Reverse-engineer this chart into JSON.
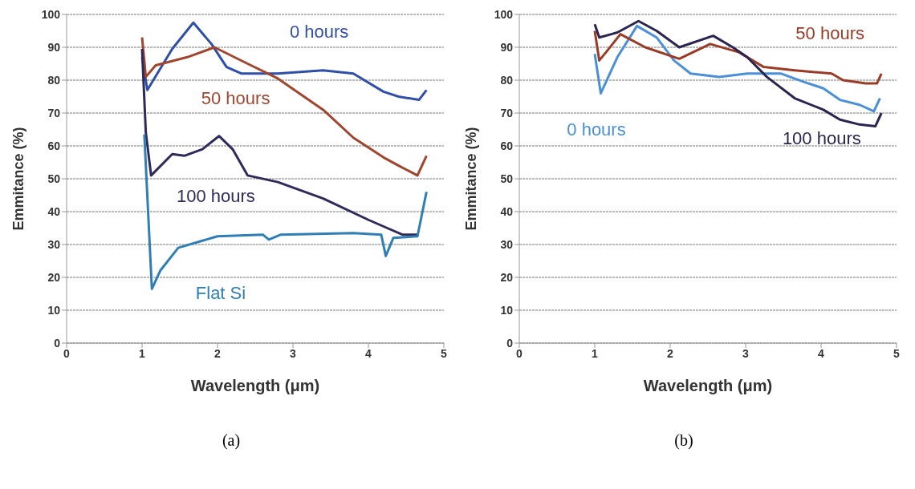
{
  "chart_data": [
    {
      "type": "line",
      "xlabel": "Wavelength (μm)",
      "ylabel": "Emmitance (%)",
      "xlim": [
        0,
        5
      ],
      "xticks": [
        0,
        1,
        2,
        3,
        4,
        5
      ],
      "ylim": [
        0,
        100
      ],
      "yticks": [
        0,
        10,
        20,
        30,
        40,
        50,
        60,
        70,
        80,
        90,
        100
      ],
      "grid": "y",
      "marker": "none",
      "line_style": "solid",
      "annotations": [
        "(a)"
      ],
      "series": [
        {
          "name": "0 hours",
          "color": "#2f4fa8",
          "x": [
            1.0,
            1.07,
            1.4,
            1.68,
            1.92,
            2.12,
            2.32,
            2.8,
            3.4,
            3.8,
            4.2,
            4.4,
            4.67,
            4.77
          ],
          "values": [
            87,
            77,
            89.5,
            97.5,
            91,
            84,
            82,
            82,
            83,
            82,
            76.5,
            75,
            74,
            77
          ]
        },
        {
          "name": "50 hours",
          "color": "#a0452e",
          "x": [
            1.0,
            1.05,
            1.18,
            1.6,
            1.96,
            2.4,
            2.8,
            3.4,
            3.8,
            4.2,
            4.4,
            4.65,
            4.77
          ],
          "values": [
            93,
            81,
            84.5,
            87,
            90,
            85,
            80.5,
            71,
            62.5,
            56.5,
            54,
            51,
            57
          ]
        },
        {
          "name": "100 hours",
          "color": "#2e2a5c",
          "x": [
            1.0,
            1.05,
            1.12,
            1.4,
            1.56,
            1.8,
            2.02,
            2.2,
            2.4,
            2.8,
            3.4,
            4.0,
            4.25,
            4.45,
            4.67
          ],
          "values": [
            89.5,
            64,
            51,
            57.5,
            57,
            59,
            63,
            59,
            51,
            49,
            44,
            37.5,
            35,
            33,
            33
          ]
        },
        {
          "name": "Flat Si",
          "color": "#2f7fb6",
          "x": [
            1.03,
            1.13,
            1.24,
            1.48,
            2.0,
            2.6,
            2.68,
            2.84,
            3.8,
            4.17,
            4.23,
            4.33,
            4.65,
            4.77
          ],
          "values": [
            63.5,
            16.5,
            22,
            29,
            32.5,
            33,
            31.5,
            33,
            33.5,
            33,
            26.5,
            32,
            32.5,
            46
          ]
        }
      ]
    },
    {
      "type": "line",
      "xlabel": "Wavelength (μm)",
      "ylabel": "Emmitance (%)",
      "xlim": [
        0,
        5
      ],
      "xticks": [
        0,
        1,
        2,
        3,
        4,
        5
      ],
      "ylim": [
        0,
        100
      ],
      "yticks": [
        0,
        10,
        20,
        30,
        40,
        50,
        60,
        70,
        80,
        90,
        100
      ],
      "grid": "y",
      "marker": "none",
      "line_style": "solid",
      "annotations": [
        "(b)"
      ],
      "series": [
        {
          "name": "0 hours",
          "color": "#4a8fd8",
          "x": [
            1.0,
            1.08,
            1.3,
            1.56,
            1.82,
            2.05,
            2.27,
            2.65,
            3.02,
            3.47,
            3.77,
            4.03,
            4.25,
            4.51,
            4.7,
            4.78
          ],
          "values": [
            88,
            76,
            87,
            96.5,
            93,
            86,
            82,
            81,
            82,
            82,
            79.5,
            77.5,
            74,
            72.5,
            70.5,
            74.5
          ]
        },
        {
          "name": "50 hours",
          "color": "#9a3b26",
          "x": [
            1.0,
            1.06,
            1.15,
            1.34,
            1.67,
            2.12,
            2.53,
            2.91,
            3.24,
            3.65,
            4.14,
            4.29,
            4.59,
            4.74,
            4.8
          ],
          "values": [
            95,
            86,
            88.5,
            94,
            90,
            86.5,
            91,
            88.5,
            84,
            83,
            82,
            80,
            79,
            79,
            82
          ]
        },
        {
          "name": "100 hours",
          "color": "#2a2550",
          "x": [
            1.0,
            1.06,
            1.3,
            1.58,
            1.82,
            2.12,
            2.57,
            2.83,
            3.02,
            3.28,
            3.65,
            4.03,
            4.25,
            4.51,
            4.72,
            4.8
          ],
          "values": [
            97,
            93,
            94.5,
            98,
            95,
            90,
            93.5,
            90,
            87,
            81,
            74.5,
            71,
            68,
            66.5,
            66,
            70
          ]
        }
      ]
    }
  ]
}
